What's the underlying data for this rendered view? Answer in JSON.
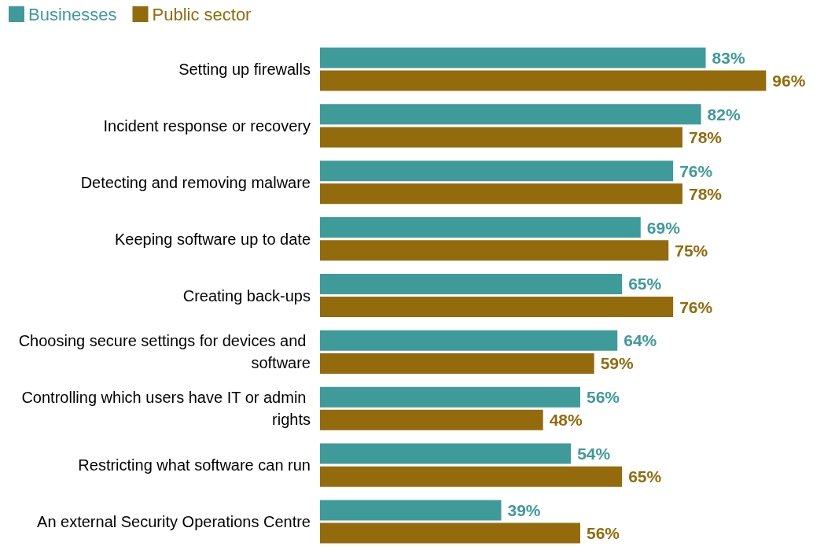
{
  "chart_data": {
    "type": "bar",
    "orientation": "horizontal",
    "legend": "top left",
    "categories": [
      "Setting up firewalls",
      "Incident response or recovery",
      "Detecting and removing malware",
      "Keeping software up to date",
      "Creating back-ups",
      "Choosing secure settings for devices and software",
      "Controlling which users have IT or admin rights",
      "Restricting what software can run",
      "An external Security Operations Centre"
    ],
    "series": [
      {
        "name": "Businesses",
        "color": "#3f9a9a",
        "values": [
          83,
          82,
          76,
          69,
          65,
          64,
          56,
          54,
          39
        ],
        "value_labels": [
          "83%",
          "82%",
          "76%",
          "69%",
          "65%",
          "64%",
          "56%",
          "54%",
          "39%"
        ]
      },
      {
        "name": "Public sector",
        "color": "#946b0c",
        "values": [
          96,
          78,
          78,
          75,
          76,
          59,
          48,
          65,
          56
        ],
        "value_labels": [
          "96%",
          "78%",
          "78%",
          "75%",
          "76%",
          "59%",
          "48%",
          "65%",
          "56%"
        ]
      }
    ]
  }
}
